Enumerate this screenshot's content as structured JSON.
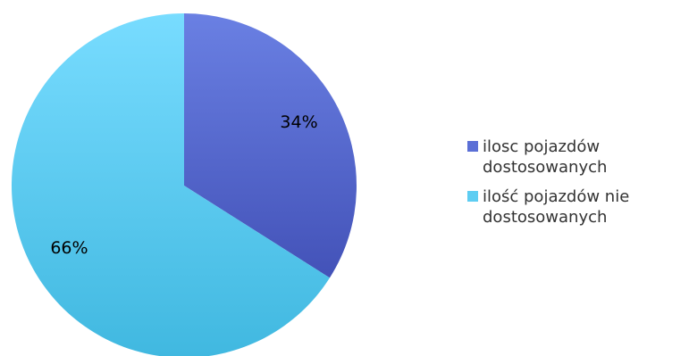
{
  "chart_data": {
    "type": "pie",
    "categories": [
      "ilosc pojazdów dostosowanych",
      "ilość pojazdów nie dostosowanych"
    ],
    "values": [
      34,
      66
    ],
    "labels": [
      "34%",
      "66%"
    ],
    "colors": [
      "#5b6fd6",
      "#5dcdf2"
    ],
    "legend_placement": "right"
  }
}
